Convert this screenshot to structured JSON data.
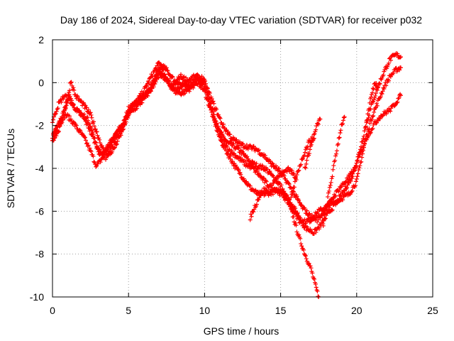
{
  "chart_data": {
    "type": "scatter",
    "title": "Day 186 of 2024, Sidereal Day-to-day VTEC variation (SDTVAR) for receiver p032",
    "xlabel": "GPS time / hours",
    "ylabel": "SDTVAR / TECUs",
    "xlim": [
      0,
      25
    ],
    "ylim": [
      -10,
      2
    ],
    "xticks": [
      "0",
      "5",
      "10",
      "15",
      "20",
      "25"
    ],
    "yticks": [
      "2",
      "0",
      "-2",
      "-4",
      "-6",
      "-8",
      "-10"
    ],
    "grid": true,
    "marker": "plus",
    "color": "#ff0000",
    "series": [
      {
        "points": [
          [
            0.0,
            -2.6
          ],
          [
            0.4,
            -2.0
          ],
          [
            0.8,
            -1.2
          ],
          [
            1.1,
            -0.6
          ],
          [
            1.3,
            -1.0
          ],
          [
            1.6,
            -1.3
          ],
          [
            2.0,
            -1.5
          ],
          [
            2.3,
            -1.7
          ],
          [
            2.6,
            -2.2
          ],
          [
            2.9,
            -3.0
          ],
          [
            3.2,
            -3.3
          ],
          [
            3.5,
            -3.2
          ],
          [
            3.8,
            -2.8
          ],
          [
            4.2,
            -2.4
          ],
          [
            4.6,
            -2.0
          ],
          [
            5.0,
            -1.2
          ],
          [
            5.5,
            -1.0
          ],
          [
            6.0,
            -0.6
          ],
          [
            6.5,
            -0.3
          ],
          [
            6.8,
            0.4
          ],
          [
            7.0,
            0.7
          ],
          [
            7.3,
            0.5
          ],
          [
            7.6,
            0.0
          ],
          [
            8.0,
            -0.3
          ],
          [
            8.5,
            -0.2
          ],
          [
            9.0,
            -0.2
          ],
          [
            9.5,
            0.2
          ],
          [
            10.0,
            -0.1
          ],
          [
            10.3,
            -0.8
          ],
          [
            10.6,
            -1.6
          ],
          [
            11.0,
            -2.3
          ],
          [
            11.5,
            -2.8
          ],
          [
            12.0,
            -3.0
          ],
          [
            12.5,
            -3.3
          ],
          [
            13.0,
            -3.7
          ],
          [
            13.5,
            -3.9
          ],
          [
            14.0,
            -4.0
          ],
          [
            14.5,
            -4.4
          ],
          [
            15.0,
            -4.8
          ],
          [
            15.4,
            -5.4
          ],
          [
            15.8,
            -6.2
          ],
          [
            16.2,
            -7.2
          ],
          [
            16.6,
            -8.0
          ],
          [
            17.0,
            -8.7
          ],
          [
            17.3,
            -9.5
          ],
          [
            17.5,
            -10.0
          ]
        ]
      },
      {
        "points": [
          [
            0.0,
            -2.5
          ],
          [
            0.4,
            -1.8
          ],
          [
            0.9,
            -1.5
          ],
          [
            1.3,
            -1.8
          ],
          [
            1.7,
            -2.2
          ],
          [
            2.1,
            -2.6
          ],
          [
            2.5,
            -3.2
          ],
          [
            2.9,
            -3.9
          ],
          [
            3.2,
            -3.6
          ],
          [
            3.6,
            -3.0
          ],
          [
            4.0,
            -2.6
          ],
          [
            4.5,
            -2.0
          ],
          [
            5.0,
            -1.4
          ],
          [
            5.5,
            -0.9
          ],
          [
            6.0,
            -0.4
          ],
          [
            6.5,
            0.3
          ],
          [
            7.0,
            0.9
          ],
          [
            7.5,
            0.6
          ],
          [
            8.0,
            0.1
          ],
          [
            8.5,
            -0.1
          ],
          [
            9.0,
            -0.1
          ],
          [
            9.5,
            0.1
          ],
          [
            10.0,
            -0.4
          ],
          [
            10.5,
            -1.5
          ],
          [
            11.0,
            -2.6
          ],
          [
            11.5,
            -3.3
          ],
          [
            12.0,
            -3.9
          ],
          [
            12.5,
            -4.4
          ],
          [
            13.0,
            -4.9
          ],
          [
            13.5,
            -5.2
          ],
          [
            14.0,
            -5.2
          ],
          [
            14.5,
            -5.1
          ],
          [
            15.0,
            -5.0
          ],
          [
            15.5,
            -5.4
          ],
          [
            16.0,
            -6.0
          ],
          [
            16.5,
            -6.5
          ],
          [
            17.0,
            -6.4
          ],
          [
            17.5,
            -6.0
          ],
          [
            18.0,
            -5.8
          ],
          [
            18.5,
            -5.6
          ],
          [
            19.0,
            -5.4
          ],
          [
            19.5,
            -5.2
          ],
          [
            20.0,
            -4.6
          ],
          [
            20.3,
            -3.6
          ],
          [
            20.6,
            -2.6
          ],
          [
            21.0,
            -1.6
          ],
          [
            21.4,
            -0.9
          ],
          [
            21.8,
            -0.2
          ],
          [
            22.2,
            0.3
          ],
          [
            22.6,
            0.6
          ],
          [
            22.9,
            0.7
          ]
        ]
      },
      {
        "points": [
          [
            0.0,
            -1.8
          ],
          [
            0.4,
            -1.0
          ],
          [
            0.8,
            -0.6
          ],
          [
            1.2,
            -0.9
          ],
          [
            1.6,
            -1.3
          ],
          [
            2.0,
            -1.6
          ],
          [
            2.4,
            -2.1
          ],
          [
            2.8,
            -2.8
          ],
          [
            3.1,
            -3.3
          ],
          [
            3.5,
            -3.5
          ],
          [
            3.9,
            -3.0
          ],
          [
            4.3,
            -2.5
          ],
          [
            4.8,
            -1.8
          ],
          [
            5.2,
            -1.1
          ],
          [
            5.7,
            -0.8
          ],
          [
            6.2,
            -0.5
          ],
          [
            6.7,
            0.1
          ],
          [
            7.1,
            0.4
          ],
          [
            7.5,
            0.1
          ],
          [
            8.0,
            -0.4
          ],
          [
            8.5,
            -0.5
          ],
          [
            9.0,
            -0.3
          ],
          [
            9.5,
            0.0
          ],
          [
            10.0,
            0.0
          ],
          [
            10.4,
            -0.9
          ],
          [
            10.8,
            -2.0
          ],
          [
            11.2,
            -2.8
          ],
          [
            11.7,
            -3.2
          ],
          [
            12.2,
            -3.5
          ],
          [
            12.7,
            -3.8
          ],
          [
            13.2,
            -4.0
          ],
          [
            13.7,
            -4.4
          ],
          [
            14.2,
            -4.8
          ],
          [
            14.7,
            -5.0
          ],
          [
            15.2,
            -5.3
          ],
          [
            15.7,
            -5.8
          ],
          [
            16.2,
            -6.4
          ],
          [
            16.7,
            -6.8
          ],
          [
            17.2,
            -7.0
          ],
          [
            17.7,
            -6.6
          ],
          [
            18.2,
            -6.0
          ],
          [
            18.7,
            -5.6
          ],
          [
            19.2,
            -5.0
          ],
          [
            19.7,
            -4.4
          ],
          [
            20.2,
            -3.2
          ],
          [
            20.6,
            -2.0
          ],
          [
            21.0,
            -1.0
          ],
          [
            21.4,
            -0.2
          ],
          [
            21.8,
            0.5
          ],
          [
            22.2,
            1.1
          ],
          [
            22.6,
            1.3
          ],
          [
            22.9,
            1.2
          ]
        ]
      },
      {
        "points": [
          [
            0.0,
            -2.7
          ],
          [
            0.5,
            -2.1
          ],
          [
            1.0,
            -0.8
          ],
          [
            1.2,
            0.1
          ],
          [
            1.5,
            -0.6
          ],
          [
            2.0,
            -1.0
          ],
          [
            2.5,
            -1.5
          ],
          [
            3.0,
            -2.5
          ],
          [
            3.3,
            -3.1
          ],
          [
            3.7,
            -3.4
          ],
          [
            4.1,
            -3.0
          ],
          [
            4.5,
            -2.4
          ],
          [
            5.0,
            -1.5
          ],
          [
            5.6,
            -1.1
          ],
          [
            6.1,
            -0.7
          ],
          [
            6.6,
            -0.2
          ],
          [
            7.0,
            0.5
          ],
          [
            7.4,
            0.2
          ],
          [
            7.9,
            -0.2
          ],
          [
            8.4,
            0.3
          ],
          [
            8.9,
            0.1
          ],
          [
            9.4,
            0.3
          ],
          [
            9.9,
            0.2
          ],
          [
            10.3,
            -0.5
          ],
          [
            10.7,
            -1.2
          ],
          [
            11.2,
            -2.0
          ],
          [
            11.8,
            -2.6
          ],
          [
            12.4,
            -2.9
          ],
          [
            12.9,
            -3.0
          ],
          [
            13.4,
            -3.1
          ],
          [
            13.9,
            -3.4
          ],
          [
            14.4,
            -3.8
          ],
          [
            14.9,
            -4.1
          ],
          [
            15.4,
            -4.6
          ],
          [
            15.9,
            -5.2
          ],
          [
            16.4,
            -5.8
          ],
          [
            16.9,
            -6.2
          ],
          [
            17.4,
            -6.4
          ],
          [
            17.9,
            -6.0
          ],
          [
            18.4,
            -5.4
          ],
          [
            18.9,
            -4.9
          ],
          [
            19.4,
            -4.5
          ],
          [
            19.9,
            -4.0
          ],
          [
            20.3,
            -3.2
          ],
          [
            20.7,
            -2.5
          ],
          [
            21.1,
            -2.0
          ],
          [
            21.5,
            -1.6
          ],
          [
            21.9,
            -1.4
          ],
          [
            22.3,
            -1.2
          ],
          [
            22.6,
            -0.9
          ],
          [
            22.9,
            -0.6
          ]
        ]
      },
      {
        "points": [
          [
            13.0,
            -6.3
          ],
          [
            13.3,
            -5.8
          ],
          [
            13.6,
            -5.3
          ],
          [
            13.9,
            -5.0
          ],
          [
            14.2,
            -5.1
          ]
        ]
      },
      {
        "points": [
          [
            16.6,
            -4.0
          ],
          [
            16.8,
            -3.4
          ],
          [
            17.1,
            -2.7
          ],
          [
            17.4,
            -2.0
          ],
          [
            17.6,
            -1.7
          ]
        ]
      },
      {
        "points": [
          [
            17.8,
            -6.6
          ],
          [
            18.1,
            -5.4
          ],
          [
            18.4,
            -4.3
          ],
          [
            18.7,
            -3.1
          ],
          [
            19.0,
            -2.0
          ],
          [
            19.2,
            -1.6
          ]
        ]
      },
      {
        "points": [
          [
            15.6,
            -5.7
          ],
          [
            15.9,
            -4.8
          ],
          [
            16.2,
            -4.0
          ],
          [
            16.6,
            -3.2
          ],
          [
            16.9,
            -2.7
          ],
          [
            17.2,
            -2.6
          ]
        ]
      },
      {
        "points": [
          [
            20.6,
            -2.0
          ],
          [
            20.9,
            -0.8
          ],
          [
            21.2,
            0.0
          ],
          [
            21.4,
            -0.2
          ]
        ]
      },
      {
        "points": [
          [
            14.5,
            -4.6
          ],
          [
            15.0,
            -4.3
          ],
          [
            15.5,
            -4.0
          ],
          [
            16.0,
            -4.4
          ]
        ]
      }
    ]
  }
}
